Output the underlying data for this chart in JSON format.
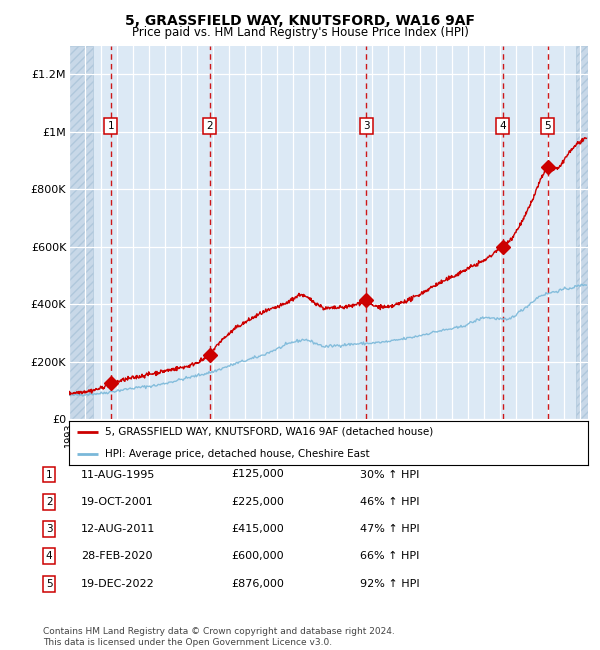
{
  "title1": "5, GRASSFIELD WAY, KNUTSFORD, WA16 9AF",
  "title2": "Price paid vs. HM Land Registry's House Price Index (HPI)",
  "sale_dates_num": [
    1995.61,
    2001.8,
    2011.62,
    2020.16,
    2022.97
  ],
  "sale_prices": [
    125000,
    225000,
    415000,
    600000,
    876000
  ],
  "sale_labels": [
    "1",
    "2",
    "3",
    "4",
    "5"
  ],
  "sale_dates_str": [
    "11-AUG-1995",
    "19-OCT-2001",
    "12-AUG-2011",
    "28-FEB-2020",
    "19-DEC-2022"
  ],
  "sale_hpi_pct": [
    "30%",
    "46%",
    "47%",
    "66%",
    "92%"
  ],
  "hpi_color": "#7ab8d9",
  "price_color": "#cc0000",
  "marker_color": "#cc0000",
  "dashed_line_color": "#cc0000",
  "bg_color": "#dce9f5",
  "hatched_color": "#c8d8e8",
  "legend_label_price": "5, GRASSFIELD WAY, KNUTSFORD, WA16 9AF (detached house)",
  "legend_label_hpi": "HPI: Average price, detached house, Cheshire East",
  "footer": "Contains HM Land Registry data © Crown copyright and database right 2024.\nThis data is licensed under the Open Government Licence v3.0.",
  "ylim": [
    0,
    1300000
  ],
  "xlim_start": 1993.0,
  "xlim_end": 2025.5,
  "yticks": [
    0,
    200000,
    400000,
    600000,
    800000,
    1000000,
    1200000
  ],
  "ytick_labels": [
    "£0",
    "£200K",
    "£400K",
    "£600K",
    "£800K",
    "£1M",
    "£1.2M"
  ]
}
